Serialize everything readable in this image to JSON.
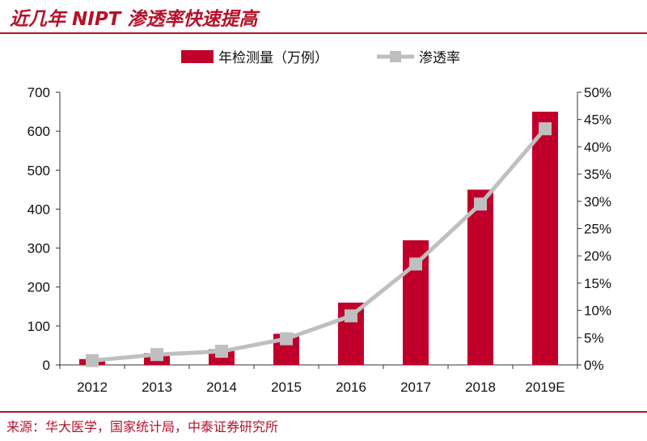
{
  "header": {
    "title": "近几年 NIPT 渗透率快速提高"
  },
  "footer": {
    "source": "来源：华大医学，国家统计局，中泰证券研究所"
  },
  "colors": {
    "bar": "#c0002a",
    "line": "#bfbfbf",
    "accent": "#b5122a"
  },
  "chart_data": {
    "type": "bar",
    "categories": [
      "2012",
      "2013",
      "2014",
      "2015",
      "2016",
      "2017",
      "2018",
      "2019E"
    ],
    "series": [
      {
        "name": "年检测量（万例）",
        "type": "bar",
        "axis": "left",
        "values": [
          15,
          30,
          40,
          80,
          160,
          320,
          450,
          650
        ]
      },
      {
        "name": "渗透率",
        "type": "line",
        "axis": "right",
        "values": [
          0.008,
          0.019,
          0.025,
          0.048,
          0.09,
          0.185,
          0.295,
          0.433
        ]
      }
    ],
    "y_left": {
      "ylim": [
        0,
        700
      ],
      "ticks": [
        "0",
        "100",
        "200",
        "300",
        "400",
        "500",
        "600",
        "700"
      ]
    },
    "y_right": {
      "ylim": [
        0,
        0.5
      ],
      "ticks": [
        "0%",
        "5%",
        "10%",
        "15%",
        "20%",
        "25%",
        "30%",
        "35%",
        "40%",
        "45%",
        "50%"
      ]
    },
    "legend": "top-center",
    "grid": false
  }
}
